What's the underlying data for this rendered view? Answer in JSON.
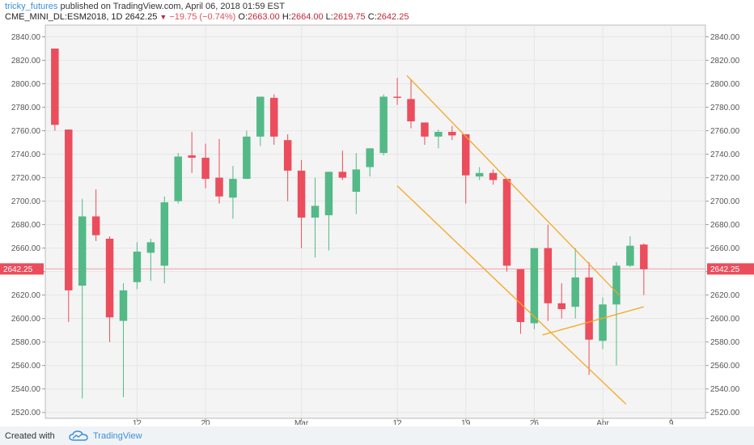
{
  "header": {
    "user": "tricky_futures",
    "published_text": "published on TradingView.com, April 06, 2018 01:59 EST",
    "symbol": "CME_MINI_DL:ESM2018, 1D",
    "last": "2642.25",
    "change_arrow": "down-triangle-icon",
    "change": "−19.75 (−0.74%)",
    "o_label": "O:",
    "o_value": "2663.00",
    "h_label": "H:",
    "h_value": "2664.00",
    "l_label": "L:",
    "l_value": "2619.75",
    "c_label": "C:",
    "c_value": "2642.25"
  },
  "footer": {
    "created_with": "Created with",
    "brand": "TradingView",
    "logo_icon": "tradingview-cloud-icon"
  },
  "colors": {
    "up": "#53b987",
    "down": "#eb4d5c",
    "trendline": "#f5a623",
    "price_label_bg": "#eb4d5c",
    "grid": "#e6e6e6",
    "plot_bg": "#f4f4f4"
  },
  "chart_data": {
    "type": "candlestick",
    "y_axis": {
      "range": [
        2515,
        2850
      ],
      "ticks": [
        "2520.00",
        "2540.00",
        "2560.00",
        "2580.00",
        "2600.00",
        "2620.00",
        "2640.00",
        "2660.00",
        "2680.00",
        "2700.00",
        "2720.00",
        "2740.00",
        "2760.00",
        "2780.00",
        "2800.00",
        "2820.00",
        "2840.00"
      ],
      "position": "both"
    },
    "x_axis": {
      "tick_labels": [
        {
          "label": "12",
          "index": 6
        },
        {
          "label": "20",
          "index": 11
        },
        {
          "label": "Mar",
          "index": 18
        },
        {
          "label": "12",
          "index": 25
        },
        {
          "label": "19",
          "index": 30
        },
        {
          "label": "26",
          "index": 35
        },
        {
          "label": "Apr",
          "index": 40
        },
        {
          "label": "9",
          "index": 45
        }
      ],
      "index_range": [
        -0.7,
        47.5
      ]
    },
    "last_price": 2642.25,
    "last_price_label": "2642.25",
    "grid": true,
    "candles": [
      {
        "o": 2830,
        "h": 2830,
        "l": 2760,
        "c": 2765
      },
      {
        "o": 2761,
        "h": 2761,
        "l": 2597,
        "c": 2624
      },
      {
        "o": 2628,
        "h": 2702,
        "l": 2532,
        "c": 2687
      },
      {
        "o": 2687,
        "h": 2710,
        "l": 2666,
        "c": 2671
      },
      {
        "o": 2668,
        "h": 2670,
        "l": 2580,
        "c": 2601
      },
      {
        "o": 2598,
        "h": 2630,
        "l": 2533,
        "c": 2624
      },
      {
        "o": 2631,
        "h": 2665,
        "l": 2625,
        "c": 2657
      },
      {
        "o": 2656,
        "h": 2668,
        "l": 2632,
        "c": 2665
      },
      {
        "o": 2645,
        "h": 2704,
        "l": 2630,
        "c": 2699
      },
      {
        "o": 2700,
        "h": 2741,
        "l": 2698,
        "c": 2738
      },
      {
        "o": 2739,
        "h": 2759,
        "l": 2724,
        "c": 2737
      },
      {
        "o": 2737,
        "h": 2749,
        "l": 2711,
        "c": 2719
      },
      {
        "o": 2720,
        "h": 2753,
        "l": 2698,
        "c": 2704
      },
      {
        "o": 2703,
        "h": 2730,
        "l": 2685,
        "c": 2719
      },
      {
        "o": 2719,
        "h": 2760,
        "l": 2719,
        "c": 2755
      },
      {
        "o": 2755,
        "h": 2789,
        "l": 2747,
        "c": 2789
      },
      {
        "o": 2788,
        "h": 2791,
        "l": 2748,
        "c": 2755
      },
      {
        "o": 2752,
        "h": 2757,
        "l": 2700,
        "c": 2726
      },
      {
        "o": 2726,
        "h": 2735,
        "l": 2660,
        "c": 2686
      },
      {
        "o": 2686,
        "h": 2720,
        "l": 2652,
        "c": 2696
      },
      {
        "o": 2688,
        "h": 2725,
        "l": 2658,
        "c": 2725
      },
      {
        "o": 2725,
        "h": 2743,
        "l": 2718,
        "c": 2720
      },
      {
        "o": 2708,
        "h": 2741,
        "l": 2689,
        "c": 2727
      },
      {
        "o": 2729,
        "h": 2745,
        "l": 2721,
        "c": 2745
      },
      {
        "o": 2741,
        "h": 2791,
        "l": 2739,
        "c": 2789
      },
      {
        "o": 2789,
        "h": 2805,
        "l": 2782,
        "c": 2788
      },
      {
        "o": 2787,
        "h": 2804,
        "l": 2762,
        "c": 2768
      },
      {
        "o": 2767,
        "h": 2767,
        "l": 2748,
        "c": 2755
      },
      {
        "o": 2755,
        "h": 2761,
        "l": 2745,
        "c": 2759
      },
      {
        "o": 2759,
        "h": 2764,
        "l": 2752,
        "c": 2756
      },
      {
        "o": 2757,
        "h": 2757,
        "l": 2698,
        "c": 2722
      },
      {
        "o": 2721,
        "h": 2729,
        "l": 2718,
        "c": 2724
      },
      {
        "o": 2724,
        "h": 2727,
        "l": 2714,
        "c": 2718
      },
      {
        "o": 2719,
        "h": 2719,
        "l": 2640,
        "c": 2645
      },
      {
        "o": 2642,
        "h": 2642,
        "l": 2587,
        "c": 2597
      },
      {
        "o": 2596,
        "h": 2660,
        "l": 2591,
        "c": 2660
      },
      {
        "o": 2660,
        "h": 2680,
        "l": 2598,
        "c": 2613
      },
      {
        "o": 2613,
        "h": 2630,
        "l": 2600,
        "c": 2608
      },
      {
        "o": 2610,
        "h": 2660,
        "l": 2600,
        "c": 2635
      },
      {
        "o": 2635,
        "h": 2648,
        "l": 2552,
        "c": 2582
      },
      {
        "o": 2581,
        "h": 2618,
        "l": 2574,
        "c": 2612
      },
      {
        "o": 2612,
        "h": 2648,
        "l": 2560,
        "c": 2645
      },
      {
        "o": 2645,
        "h": 2670,
        "l": 2644,
        "c": 2662
      },
      {
        "o": 2663,
        "h": 2664,
        "l": 2620,
        "c": 2642
      }
    ],
    "drawings": [
      {
        "type": "trend-line",
        "from": {
          "index": 25.7,
          "price": 2807
        },
        "to": {
          "index": 41.2,
          "price": 2620
        }
      },
      {
        "type": "trend-line",
        "from": {
          "index": 25.0,
          "price": 2713
        },
        "to": {
          "index": 41.7,
          "price": 2527
        }
      },
      {
        "type": "trend-line",
        "from": {
          "index": 35.6,
          "price": 2586
        },
        "to": {
          "index": 43.0,
          "price": 2610
        }
      }
    ]
  }
}
